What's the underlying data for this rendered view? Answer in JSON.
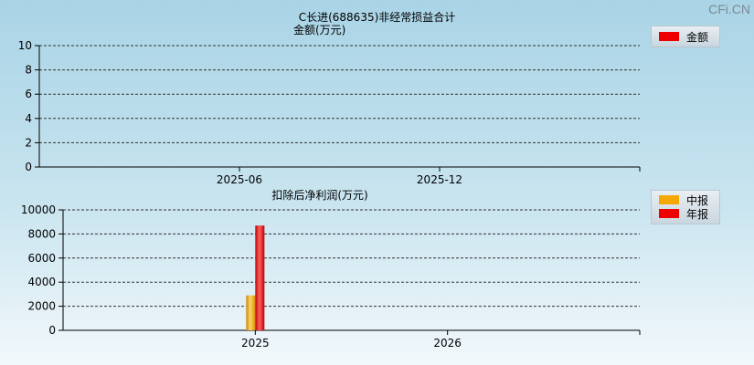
{
  "watermark": "CFi.CN",
  "colors": {
    "amount": "#ee0000",
    "interim": "#f5a800",
    "annual": "#ee0000",
    "grid": "#333333"
  },
  "chart_data": [
    {
      "type": "bar",
      "title": "C长进(688635)非经常损益合计",
      "subtitle": "金额(万元)",
      "ylabel": "金额(万元)",
      "ylim": [
        0,
        10
      ],
      "yticks": [
        0,
        2,
        4,
        6,
        8,
        10
      ],
      "x_ticks": [
        "2025-06",
        "2025-12"
      ],
      "legend": [
        "金额"
      ],
      "legend_position": "top-right",
      "grid": true,
      "series": [
        {
          "name": "金额",
          "values": []
        }
      ]
    },
    {
      "type": "bar",
      "title": "扣除后净利润(万元)",
      "ylim": [
        0,
        10000
      ],
      "yticks": [
        0,
        2000,
        4000,
        6000,
        8000,
        10000
      ],
      "categories": [
        "2025",
        "2026"
      ],
      "legend": [
        "中报",
        "年报"
      ],
      "legend_position": "top-right",
      "grid": true,
      "series": [
        {
          "name": "中报",
          "values": [
            2900,
            null
          ]
        },
        {
          "name": "年报",
          "values": [
            8700,
            null
          ]
        }
      ]
    }
  ]
}
